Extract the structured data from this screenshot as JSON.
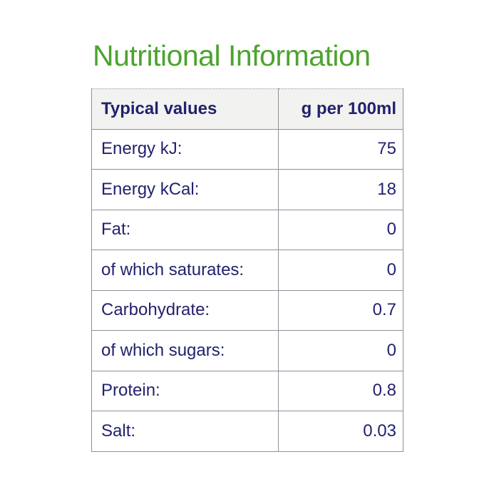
{
  "title": {
    "text": "Nutritional Information"
  },
  "table": {
    "header": {
      "col1": "Typical values",
      "col2": "g per 100ml"
    },
    "rows": [
      {
        "label": "Energy kJ:",
        "value": "75"
      },
      {
        "label": "Energy kCal:",
        "value": "18"
      },
      {
        "label": "Fat:",
        "value": "0"
      },
      {
        "label": "of which saturates:",
        "value": "0"
      },
      {
        "label": "Carbohydrate:",
        "value": "0.7"
      },
      {
        "label": "of which sugars:",
        "value": "0"
      },
      {
        "label": "Protein:",
        "value": "0.8"
      },
      {
        "label": "Salt:",
        "value": "0.03"
      }
    ]
  },
  "colors": {
    "title_green": "#4da32f",
    "text_navy": "#22226e",
    "border_gray": "#8f8f9a",
    "header_background": "#f2f2f0",
    "page_background": "#ffffff"
  }
}
